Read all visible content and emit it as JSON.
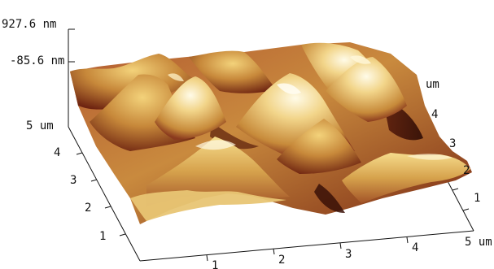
{
  "z_axis": {
    "max_label": "927.6 nm",
    "min_label": "-85.6 nm"
  },
  "y_axis": {
    "end_label": "5 um",
    "ticks": [
      "4",
      "3",
      "2",
      "1"
    ]
  },
  "x_axis": {
    "ticks": [
      "1",
      "2",
      "3",
      "4"
    ],
    "end_label": "5 um"
  },
  "right_axis": {
    "unit_label": "um",
    "ticks": [
      "4",
      "3",
      "2",
      "1"
    ]
  },
  "colors": {
    "surface_peak": "#fff6dc",
    "surface_high": "#f5d37c",
    "surface_mid": "#cf9a46",
    "surface_low": "#9a4b2a",
    "surface_valley": "#3d1208",
    "axis_line": "#111111"
  }
}
